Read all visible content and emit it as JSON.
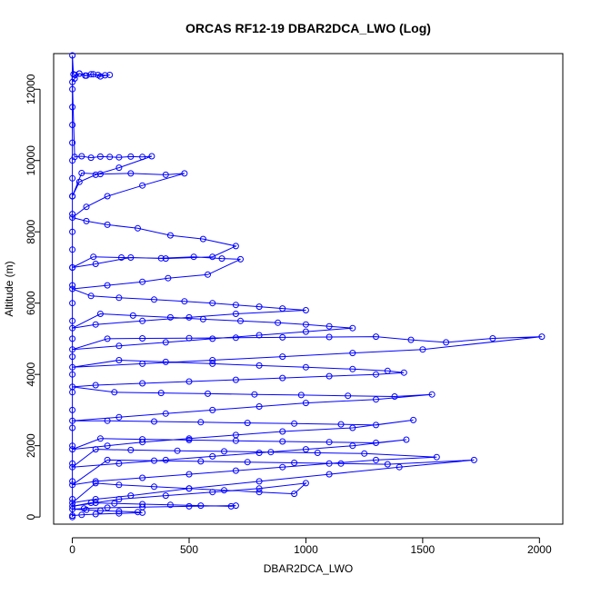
{
  "chart_data": {
    "type": "scatter",
    "title": "ORCAS RF12-19 DBAR2DCA_LWO (Log)",
    "xlabel": "DBAR2DCA_LWO",
    "ylabel": "Altitude (m)",
    "xlim": [
      -80,
      2100
    ],
    "ylim": [
      -200,
      13000
    ],
    "x_ticks": [
      0,
      500,
      1000,
      1500,
      2000
    ],
    "x_tick_labels": [
      "0",
      "500",
      "1000",
      "1500",
      "2000"
    ],
    "y_ticks": [
      0,
      2000,
      4000,
      6000,
      8000,
      10000,
      12000
    ],
    "y_tick_labels": [
      "0",
      "2000",
      "4000",
      "6000",
      "8000",
      "10000",
      "12000"
    ],
    "grid": false,
    "legend": "none",
    "marker": "open-circle",
    "connected": true,
    "color": "#0000ff",
    "series": [
      {
        "x": [
          0,
          0,
          0,
          0,
          0,
          0,
          0,
          0,
          0,
          0,
          0,
          0,
          0,
          0,
          0,
          0,
          0,
          0,
          0,
          0,
          0,
          0,
          0,
          0,
          0,
          0,
          5,
          12,
          30,
          55,
          80,
          110,
          140,
          160,
          120,
          90,
          60,
          30,
          10,
          0,
          10,
          40,
          80,
          120,
          160,
          200,
          250,
          300,
          340,
          200,
          100,
          30,
          0,
          40,
          120,
          250,
          400,
          480,
          300,
          150,
          60,
          0,
          60,
          150,
          280,
          420,
          560,
          700,
          600,
          400,
          250,
          100,
          0,
          90,
          210,
          380,
          520,
          640,
          720,
          580,
          410,
          300,
          150,
          0,
          80,
          200,
          350,
          480,
          600,
          700,
          800,
          900,
          1000,
          700,
          500,
          300,
          100,
          0,
          120,
          260,
          420,
          560,
          720,
          880,
          1000,
          1100,
          1200,
          1000,
          800,
          600,
          400,
          200,
          0,
          150,
          300,
          500,
          700,
          900,
          1100,
          1300,
          1450,
          1600,
          1800,
          2010,
          1500,
          1200,
          900,
          600,
          300,
          0,
          200,
          400,
          600,
          800,
          1000,
          1200,
          1350,
          1420,
          1300,
          1100,
          900,
          700,
          500,
          300,
          100,
          0,
          180,
          380,
          580,
          780,
          980,
          1180,
          1380,
          1540,
          1300,
          1000,
          800,
          600,
          400,
          200,
          0,
          150,
          350,
          550,
          750,
          950,
          1150,
          1300,
          1460,
          1200,
          900,
          700,
          500,
          300,
          150,
          0,
          120,
          300,
          500,
          700,
          900,
          1100,
          1300,
          1430,
          1200,
          1000,
          800,
          600,
          400,
          200,
          0,
          100,
          250,
          450,
          650,
          850,
          1050,
          1250,
          1560,
          1300,
          1100,
          900,
          700,
          500,
          300,
          100,
          0,
          150,
          350,
          550,
          750,
          950,
          1150,
          1350,
          1720,
          1400,
          1100,
          800,
          500,
          250,
          100,
          0,
          100,
          200,
          350,
          500,
          650,
          800,
          950,
          1000,
          800,
          600,
          400,
          200,
          100,
          0,
          80,
          180,
          300,
          420,
          550,
          680,
          700,
          500,
          300,
          150,
          50,
          0,
          60,
          120,
          200,
          280,
          300,
          200,
          100,
          40,
          0
        ],
        "y": [
          0,
          500,
          1000,
          1500,
          2000,
          2500,
          3000,
          3500,
          4000,
          4500,
          5000,
          5500,
          6000,
          6500,
          7000,
          7500,
          8000,
          8500,
          9000,
          9500,
          10000,
          10500,
          11000,
          11500,
          12000,
          12950,
          12420,
          12400,
          12440,
          12380,
          12420,
          12400,
          12390,
          12400,
          12360,
          12420,
          12380,
          12440,
          12300,
          12200,
          10100,
          10120,
          10080,
          10110,
          10100,
          10090,
          10110,
          10100,
          10120,
          9800,
          9600,
          9400,
          9000,
          9650,
          9620,
          9640,
          9600,
          9640,
          9300,
          9000,
          8700,
          8400,
          8300,
          8200,
          8100,
          7900,
          7800,
          7600,
          7300,
          7250,
          7280,
          7100,
          7000,
          7300,
          7280,
          7260,
          7300,
          7250,
          7230,
          6800,
          6700,
          6600,
          6500,
          6400,
          6200,
          6150,
          6100,
          6050,
          6000,
          5950,
          5900,
          5850,
          5800,
          5700,
          5600,
          5500,
          5400,
          5300,
          5700,
          5650,
          5600,
          5550,
          5500,
          5450,
          5400,
          5350,
          5300,
          5200,
          5100,
          5000,
          4900,
          4800,
          4700,
          5000,
          5010,
          5020,
          5030,
          5040,
          5050,
          5060,
          4970,
          4900,
          5010,
          5060,
          4700,
          4600,
          4500,
          4400,
          4300,
          4200,
          4400,
          4350,
          4300,
          4250,
          4200,
          4150,
          4100,
          4050,
          4000,
          3950,
          3900,
          3850,
          3800,
          3750,
          3700,
          3650,
          3500,
          3480,
          3460,
          3440,
          3420,
          3400,
          3380,
          3440,
          3300,
          3200,
          3100,
          3000,
          2900,
          2800,
          2700,
          2700,
          2680,
          2660,
          2640,
          2620,
          2600,
          2580,
          2720,
          2500,
          2400,
          2300,
          2200,
          2100,
          2000,
          1900,
          2200,
          2180,
          2160,
          2140,
          2120,
          2100,
          2080,
          2170,
          2000,
          1900,
          1800,
          1700,
          1600,
          1500,
          1400,
          1900,
          1880,
          1860,
          1840,
          1820,
          1800,
          1780,
          1680,
          1600,
          1500,
          1400,
          1300,
          1200,
          1100,
          1000,
          900,
          1600,
          1580,
          1560,
          1540,
          1520,
          1500,
          1480,
          1600,
          1400,
          1200,
          1000,
          800,
          600,
          500,
          400,
          950,
          900,
          850,
          800,
          750,
          700,
          650,
          950,
          800,
          700,
          600,
          500,
          400,
          300,
          400,
          380,
          360,
          340,
          320,
          300,
          320,
          300,
          280,
          260,
          240,
          220,
          200,
          180,
          160,
          140,
          120,
          100,
          80,
          60,
          40
        ]
      }
    ]
  }
}
